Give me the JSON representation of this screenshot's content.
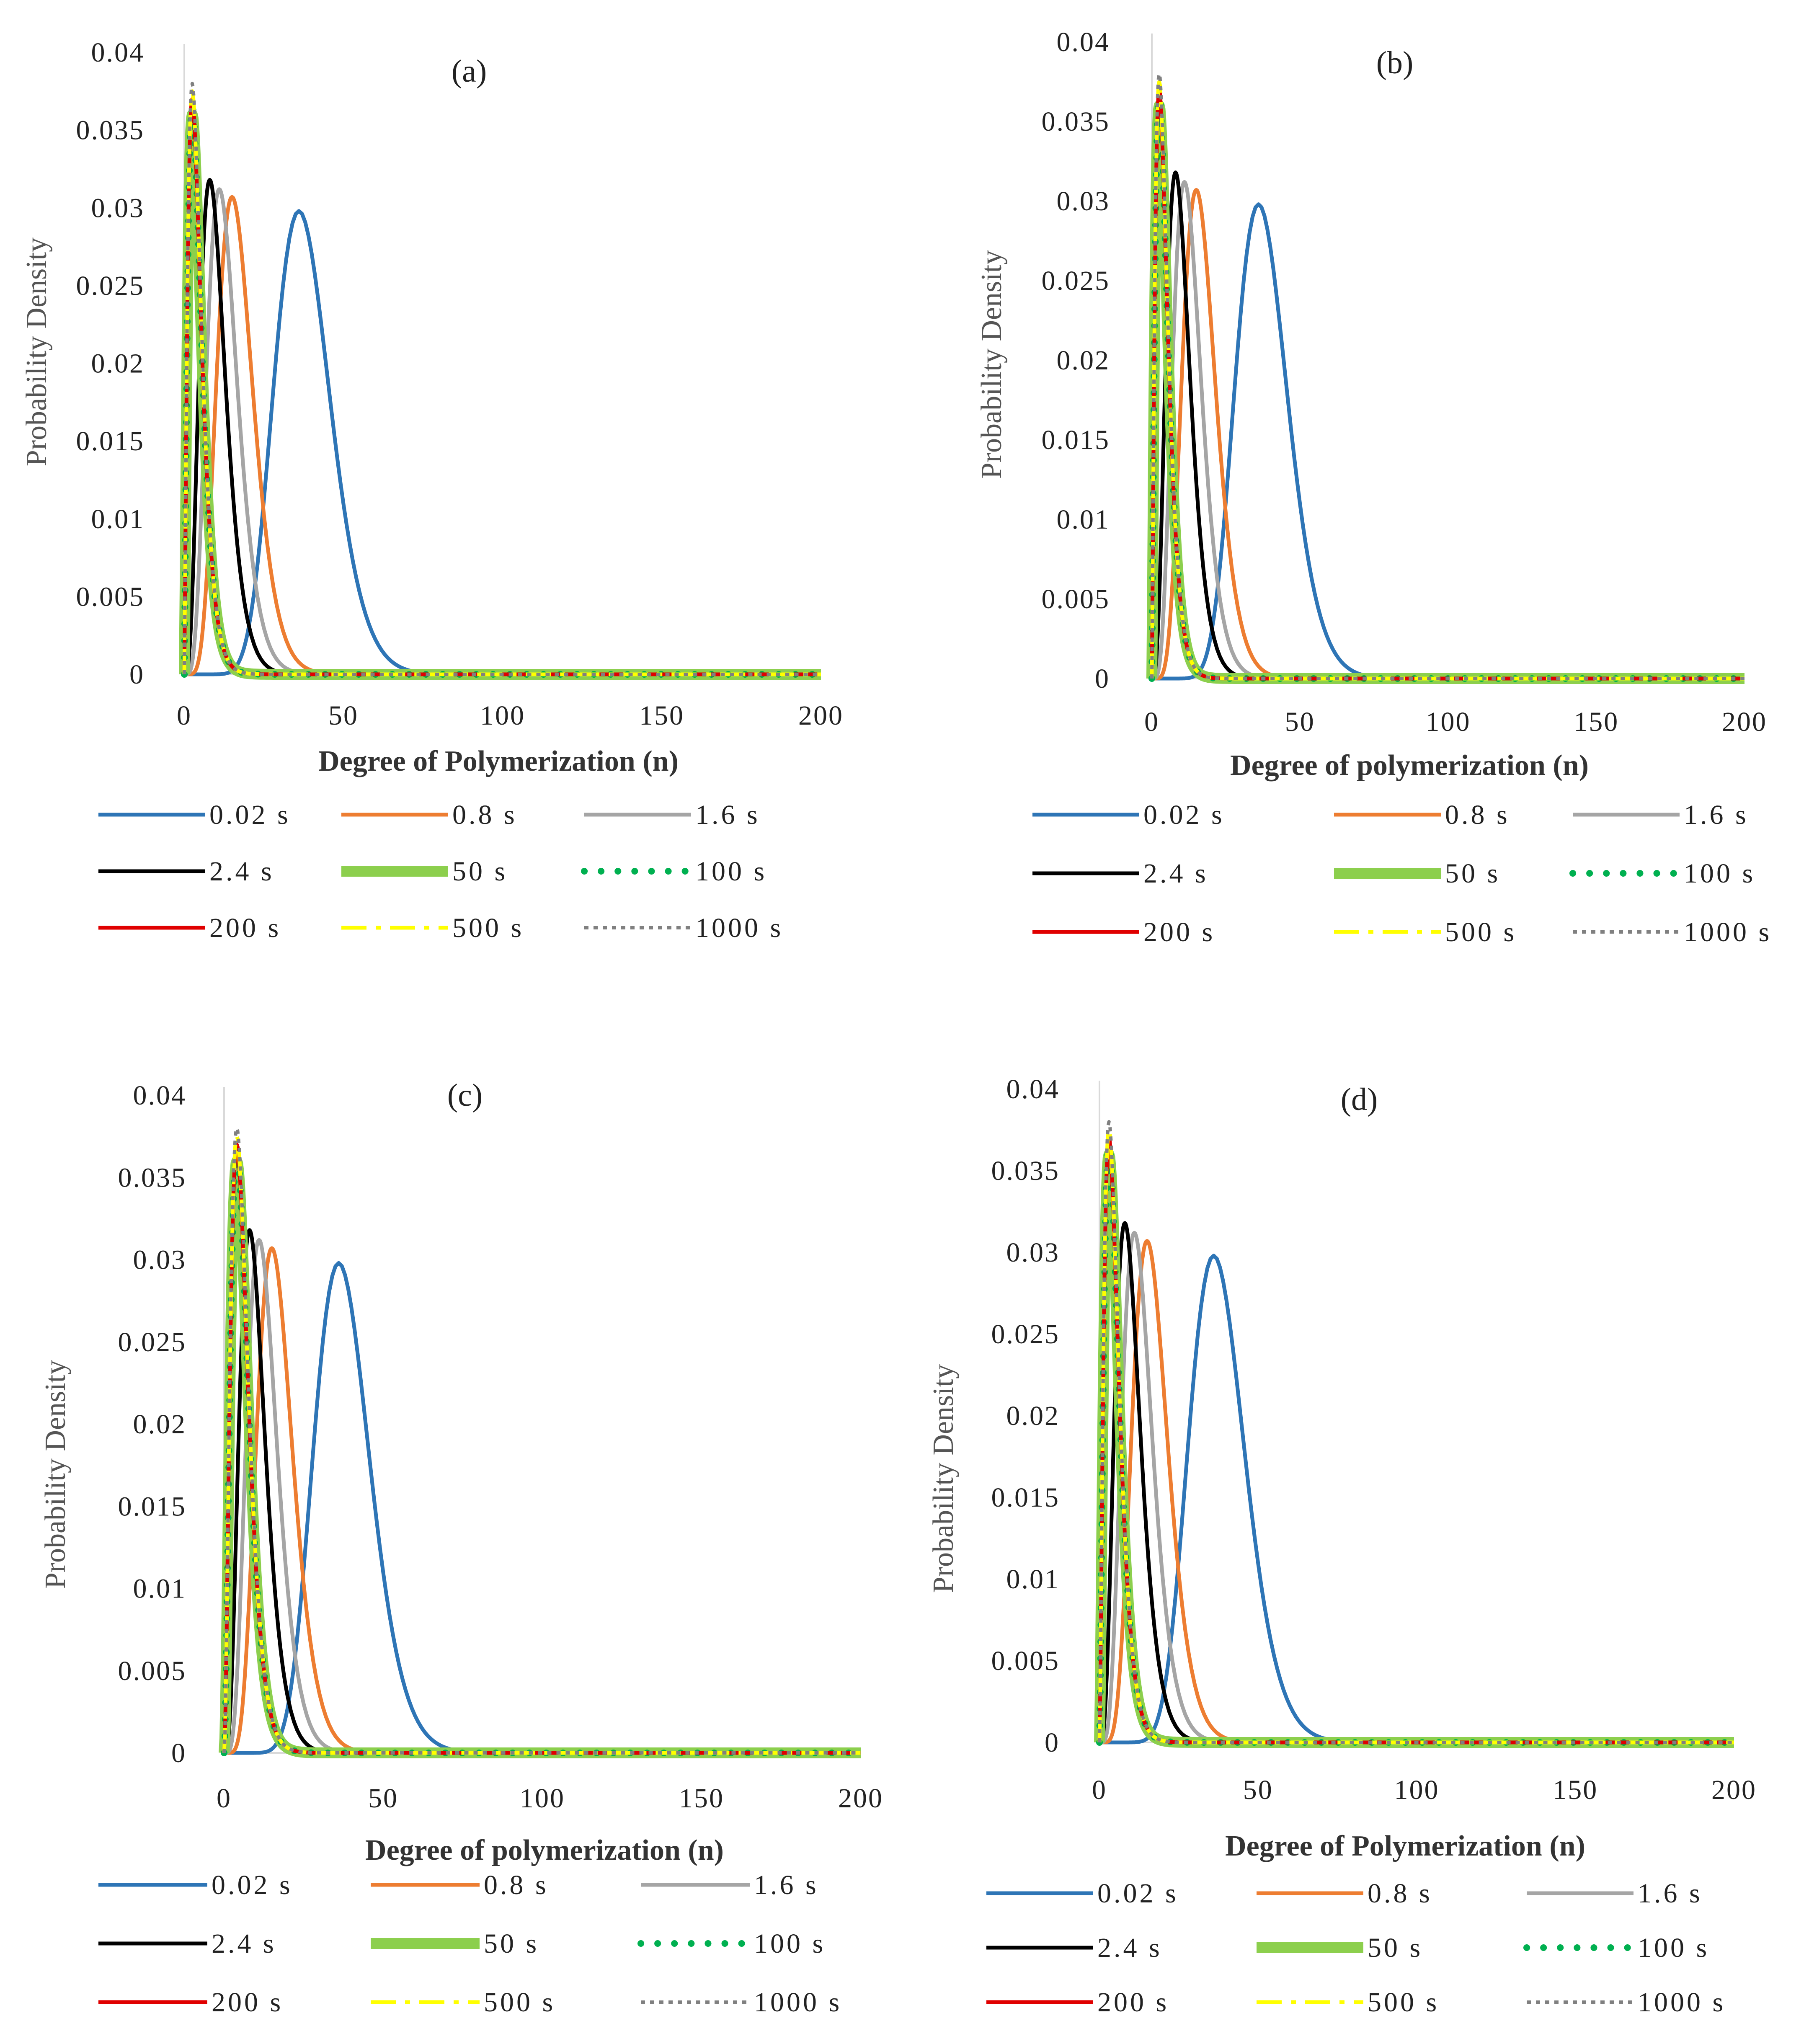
{
  "chart_data": [
    {
      "type": "line",
      "title": "(a)",
      "xlabel": "Degree of Polymerization  (n)",
      "ylabel": "Probability Density",
      "xlim": [
        0,
        200
      ],
      "ylim": [
        0,
        0.04
      ],
      "x_ticks": [
        "0",
        "50",
        "100",
        "150",
        "200"
      ],
      "y_ticks": [
        "0",
        "0.005",
        "0.01",
        "0.015",
        "0.02",
        "0.025",
        "0.03",
        "0.035",
        "0.04"
      ],
      "series_peaks": [
        {
          "name": "0.02 s",
          "peak_n": 36,
          "peak_density": 0.0298
        },
        {
          "name": "0.8 s",
          "peak_n": 15,
          "peak_density": 0.0307
        },
        {
          "name": "1.6 s",
          "peak_n": 11,
          "peak_density": 0.0312
        },
        {
          "name": "2.4 s",
          "peak_n": 8,
          "peak_density": 0.0318
        },
        {
          "name": "50  s",
          "peak_n": 2.5,
          "peak_density": 0.036
        },
        {
          "name": "100 s",
          "peak_n": 2.5,
          "peak_density": 0.0365
        },
        {
          "name": "200 s",
          "peak_n": 2.5,
          "peak_density": 0.037
        },
        {
          "name": "500 s",
          "peak_n": 2.5,
          "peak_density": 0.0375
        },
        {
          "name": "1000 s",
          "peak_n": 2.5,
          "peak_density": 0.038
        }
      ]
    },
    {
      "type": "line",
      "title": "(b)",
      "xlabel": "Degree of polymerization  (n)",
      "ylabel": "Probability Density",
      "xlim": [
        0,
        200
      ],
      "ylim": [
        0,
        0.04
      ],
      "x_ticks": [
        "0",
        "50",
        "100",
        "150",
        "200"
      ],
      "y_ticks": [
        "0",
        "0.005",
        "0.01",
        "0.015",
        "0.02",
        "0.025",
        "0.03",
        "0.035",
        "0.04"
      ],
      "series_peaks": [
        {
          "name": "0.02 s",
          "peak_n": 36,
          "peak_density": 0.0298
        },
        {
          "name": "0.8 s",
          "peak_n": 15,
          "peak_density": 0.0307
        },
        {
          "name": "1.6 s",
          "peak_n": 11,
          "peak_density": 0.0312
        },
        {
          "name": "2.4 s",
          "peak_n": 8,
          "peak_density": 0.0318
        },
        {
          "name": "50 s",
          "peak_n": 2.5,
          "peak_density": 0.036
        },
        {
          "name": "100 s",
          "peak_n": 2.5,
          "peak_density": 0.0365
        },
        {
          "name": "200 s",
          "peak_n": 2.5,
          "peak_density": 0.037
        },
        {
          "name": "500 s",
          "peak_n": 2.5,
          "peak_density": 0.0375
        },
        {
          "name": "1000 s",
          "peak_n": 2.5,
          "peak_density": 0.038
        }
      ]
    },
    {
      "type": "line",
      "title": "(c)",
      "xlabel": "Degree of polymerization  (n)",
      "ylabel": "Probability Density",
      "xlim": [
        0,
        200
      ],
      "ylim": [
        0,
        0.04
      ],
      "x_ticks": [
        "0",
        "50",
        "100",
        "150",
        "200"
      ],
      "y_ticks": [
        "0",
        "0.005",
        "0.01",
        "0.015",
        "0.02",
        "0.025",
        "0.03",
        "0.035",
        "0.04"
      ],
      "series_peaks": [
        {
          "name": "0.02 s",
          "peak_n": 36,
          "peak_density": 0.0298
        },
        {
          "name": "0.8 s",
          "peak_n": 15,
          "peak_density": 0.0307
        },
        {
          "name": "1.6 s",
          "peak_n": 11,
          "peak_density": 0.0312
        },
        {
          "name": "2.4 s",
          "peak_n": 8,
          "peak_density": 0.0318
        },
        {
          "name": "50 s",
          "peak_n": 4,
          "peak_density": 0.036
        },
        {
          "name": "100 s",
          "peak_n": 4,
          "peak_density": 0.0365
        },
        {
          "name": "200 s",
          "peak_n": 4,
          "peak_density": 0.037
        },
        {
          "name": "500 s",
          "peak_n": 4,
          "peak_density": 0.0375
        },
        {
          "name": "1000 s",
          "peak_n": 4,
          "peak_density": 0.038
        }
      ]
    },
    {
      "type": "line",
      "title": "(d)",
      "xlabel": "Degree of Polymerization  (n)",
      "ylabel": "Probability Density",
      "xlim": [
        0,
        200
      ],
      "ylim": [
        0,
        0.04
      ],
      "x_ticks": [
        "0",
        "50",
        "100",
        "150",
        "200"
      ],
      "y_ticks": [
        "0",
        "0.005",
        "0.01",
        "0.015",
        "0.02",
        "0.025",
        "0.03",
        "0.035",
        "0.04"
      ],
      "series_peaks": [
        {
          "name": "0.02 s",
          "peak_n": 36,
          "peak_density": 0.0298
        },
        {
          "name": "0.8 s",
          "peak_n": 15,
          "peak_density": 0.0307
        },
        {
          "name": "1.6 s",
          "peak_n": 11,
          "peak_density": 0.0312
        },
        {
          "name": "2.4 s",
          "peak_n": 8,
          "peak_density": 0.0318
        },
        {
          "name": "50 s",
          "peak_n": 3,
          "peak_density": 0.036
        },
        {
          "name": "100 s",
          "peak_n": 3,
          "peak_density": 0.0365
        },
        {
          "name": "200 s",
          "peak_n": 3,
          "peak_density": 0.037
        },
        {
          "name": "500 s",
          "peak_n": 3,
          "peak_density": 0.0375
        },
        {
          "name": "1000 s",
          "peak_n": 3,
          "peak_density": 0.038
        }
      ]
    }
  ],
  "series_styles": [
    {
      "color": "#2e75b6",
      "dash": "solid"
    },
    {
      "color": "#ed7d31",
      "dash": "solid"
    },
    {
      "color": "#a5a5a5",
      "dash": "solid"
    },
    {
      "color": "#000000",
      "dash": "solid"
    },
    {
      "color": "#8ccf4d",
      "dash": "thick"
    },
    {
      "color": "#00b050",
      "dash": "round-dot"
    },
    {
      "color": "#e00000",
      "dash": "solid"
    },
    {
      "color": "#ffff00",
      "dash": "long-dash-dot"
    },
    {
      "color": "#808080",
      "dash": "square-dot"
    }
  ]
}
